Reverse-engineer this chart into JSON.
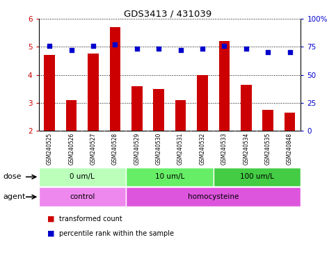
{
  "title": "GDS3413 / 431039",
  "samples": [
    "GSM240525",
    "GSM240526",
    "GSM240527",
    "GSM240528",
    "GSM240529",
    "GSM240530",
    "GSM240531",
    "GSM240532",
    "GSM240533",
    "GSM240534",
    "GSM240535",
    "GSM240848"
  ],
  "transformed_count": [
    4.7,
    3.1,
    4.75,
    5.7,
    3.6,
    3.5,
    3.1,
    4.0,
    5.2,
    3.65,
    2.75,
    2.65
  ],
  "percentile_rank": [
    76,
    72,
    76,
    77,
    73,
    73,
    72,
    73,
    76,
    73,
    70,
    70
  ],
  "bar_color": "#cc0000",
  "dot_color": "#0000cc",
  "ylim_left": [
    2,
    6
  ],
  "ylim_right": [
    0,
    100
  ],
  "yticks_left": [
    2,
    3,
    4,
    5,
    6
  ],
  "yticks_right": [
    0,
    25,
    50,
    75,
    100
  ],
  "ytick_labels_right": [
    "0",
    "25",
    "50",
    "75",
    "100%"
  ],
  "dose_groups": [
    {
      "label": "0 um/L",
      "start": 0,
      "end": 4,
      "color": "#bbffbb"
    },
    {
      "label": "10 um/L",
      "start": 4,
      "end": 8,
      "color": "#66ee66"
    },
    {
      "label": "100 um/L",
      "start": 8,
      "end": 12,
      "color": "#44cc44"
    }
  ],
  "agent_groups": [
    {
      "label": "control",
      "start": 0,
      "end": 4,
      "color": "#ee88ee"
    },
    {
      "label": "homocysteine",
      "start": 4,
      "end": 12,
      "color": "#dd55dd"
    }
  ],
  "legend_bar_label": "transformed count",
  "legend_dot_label": "percentile rank within the sample",
  "xlabel_dose": "dose",
  "xlabel_agent": "agent",
  "grid_color": "#000000",
  "bg_color": "#ffffff",
  "plot_bg": "#ffffff",
  "sample_bg": "#cccccc",
  "left_tick_color": "#cc0000",
  "right_tick_color": "#0000cc"
}
